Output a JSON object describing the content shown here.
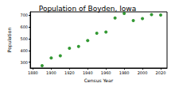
{
  "chart_data": {
    "type": "scatter",
    "title": "Population of Boyden, Iowa",
    "x_label": "Census Year",
    "y_label": "Population",
    "x": [
      1890,
      1900,
      1910,
      1920,
      1930,
      1940,
      1950,
      1960,
      1970,
      1980,
      1990,
      2000,
      2010,
      2020
    ],
    "values": [
      270,
      336,
      355,
      419,
      434,
      485,
      548,
      557,
      678,
      716,
      656,
      672,
      707,
      703
    ],
    "color": "#008000",
    "marker": "circle",
    "xlim": [
      1877,
      2027
    ],
    "xticks": [
      1880,
      1900,
      1920,
      1940,
      1960,
      1980,
      2000,
      2020
    ],
    "ylim": [
      250,
      730
    ],
    "yticks": [
      300,
      400,
      500,
      600,
      700
    ],
    "grid": false
  }
}
